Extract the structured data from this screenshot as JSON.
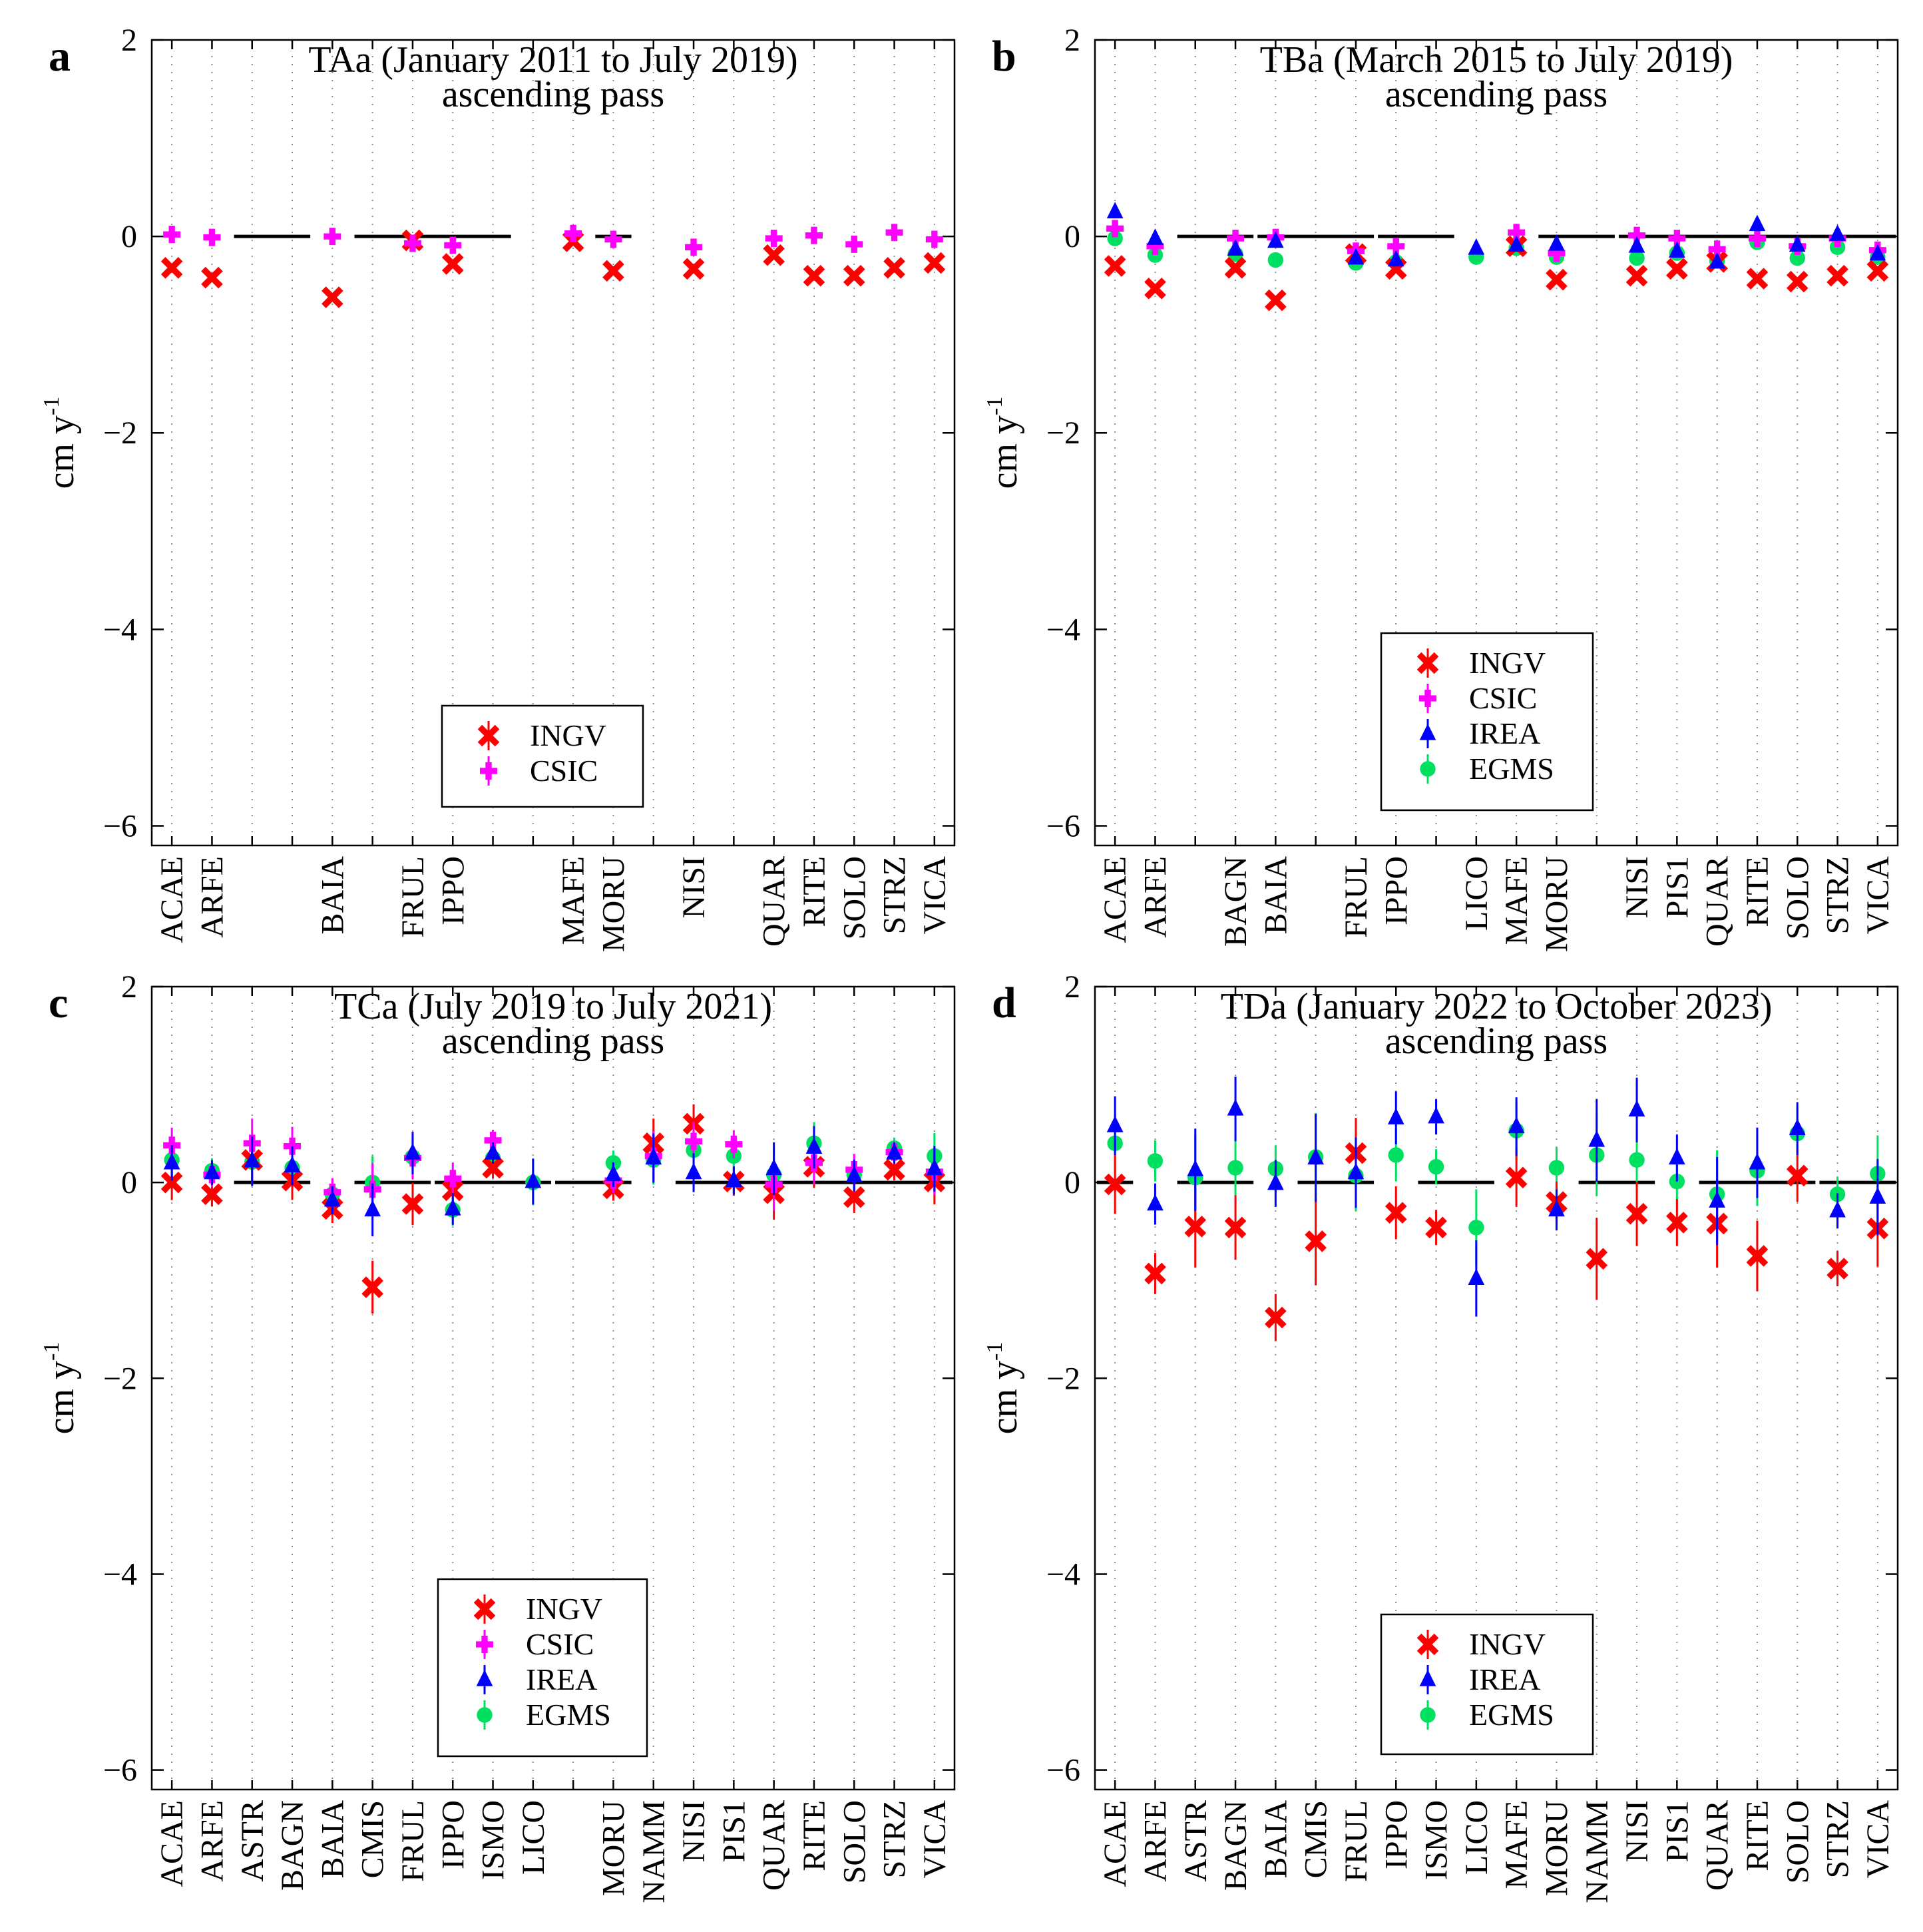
{
  "chart_data": [
    {
      "type": "scatter",
      "panel": "a",
      "title": "TAa (January 2011 to July 2019)",
      "subtitle": "ascending pass",
      "ylabel": "cm y",
      "ylabel_sup": "-1",
      "ylim": [
        -6.2,
        2
      ],
      "yticks": [
        2,
        0,
        -2,
        -4,
        -6
      ],
      "ytick_labels": [
        "2",
        "0",
        "−2",
        "−4",
        "−6"
      ],
      "legend_position": "bottom-center",
      "stations": [
        "ACAE",
        "ARFE",
        "",
        "",
        "BAIA",
        "",
        "FRUL",
        "IPPO",
        "",
        "",
        "MAFE",
        "MORU",
        "",
        "NISI",
        "",
        "QUAR",
        "RITE",
        "SOLO",
        "STRZ",
        "VICA"
      ],
      "series": [
        {
          "name": "INGV",
          "values": [
            -0.32,
            -0.42,
            null,
            null,
            -0.62,
            null,
            -0.04,
            -0.28,
            null,
            null,
            -0.05,
            -0.35,
            null,
            -0.33,
            null,
            -0.19,
            -0.4,
            -0.4,
            -0.32,
            -0.27
          ]
        },
        {
          "name": "CSIC",
          "values": [
            0.02,
            -0.01,
            null,
            null,
            0.0,
            null,
            -0.07,
            -0.09,
            null,
            null,
            0.03,
            -0.03,
            null,
            -0.11,
            null,
            -0.02,
            0.01,
            -0.08,
            0.04,
            -0.03
          ]
        }
      ]
    },
    {
      "type": "scatter",
      "panel": "b",
      "title": "TBa (March 2015 to July 2019)",
      "subtitle": "ascending pass",
      "ylabel": "cm y",
      "ylabel_sup": "-1",
      "ylim": [
        -6.2,
        2
      ],
      "yticks": [
        2,
        0,
        -2,
        -4,
        -6
      ],
      "ytick_labels": [
        "2",
        "0",
        "−2",
        "−4",
        "−6"
      ],
      "legend_position": "bottom-center",
      "stations": [
        "ACAE",
        "ARFE",
        "",
        "BAGN",
        "BAIA",
        "",
        "FRUL",
        "IPPO",
        "",
        "LICO",
        "MAFE",
        "MORU",
        "",
        "NISI",
        "PIS1",
        "QUAR",
        "RITE",
        "SOLO",
        "STRZ",
        "VICA"
      ],
      "series": [
        {
          "name": "INGV",
          "values": [
            -0.3,
            -0.53,
            null,
            -0.32,
            -0.65,
            null,
            -0.18,
            -0.33,
            null,
            null,
            -0.1,
            -0.44,
            null,
            -0.4,
            -0.33,
            -0.26,
            -0.43,
            -0.46,
            -0.4,
            -0.35
          ]
        },
        {
          "name": "CSIC",
          "values": [
            0.08,
            -0.1,
            null,
            -0.02,
            -0.01,
            null,
            -0.15,
            -0.1,
            null,
            null,
            0.04,
            -0.17,
            null,
            0.01,
            -0.02,
            -0.13,
            -0.02,
            -0.1,
            -0.02,
            -0.14
          ]
        },
        {
          "name": "IREA",
          "values": [
            0.25,
            -0.02,
            null,
            -0.13,
            -0.05,
            null,
            -0.22,
            -0.24,
            null,
            -0.12,
            -0.09,
            -0.08,
            null,
            -0.1,
            -0.15,
            -0.26,
            0.12,
            -0.09,
            0.02,
            -0.18
          ]
        },
        {
          "name": "EGMS",
          "values": [
            -0.02,
            -0.19,
            null,
            -0.18,
            -0.24,
            null,
            -0.27,
            -0.26,
            null,
            -0.21,
            -0.12,
            -0.21,
            null,
            -0.22,
            -0.17,
            -0.25,
            -0.06,
            -0.22,
            -0.11,
            -0.21
          ]
        }
      ]
    },
    {
      "type": "scatter",
      "panel": "c",
      "title": "TCa (July 2019 to July 2021)",
      "subtitle": "ascending pass",
      "ylabel": "cm y",
      "ylabel_sup": "-1",
      "ylim": [
        -6.2,
        2
      ],
      "yticks": [
        2,
        0,
        -2,
        -4,
        -6
      ],
      "ytick_labels": [
        "2",
        "0",
        "−2",
        "−4",
        "−6"
      ],
      "legend_position": "bottom-center",
      "stations": [
        "ACAE",
        "ARFE",
        "ASTR",
        "BAGN",
        "BAIA",
        "CMIS",
        "FRUL",
        "IPPO",
        "ISMO",
        "LICO",
        "",
        "MORU",
        "NAMM",
        "NISI",
        "PIS1",
        "QUAR",
        "RITE",
        "SOLO",
        "STRZ",
        "VICA"
      ],
      "series": [
        {
          "name": "INGV",
          "values": [
            0.0,
            -0.12,
            0.23,
            0.02,
            -0.27,
            -1.07,
            -0.22,
            -0.08,
            0.15,
            null,
            null,
            -0.06,
            0.4,
            0.6,
            0.01,
            -0.11,
            0.16,
            -0.15,
            0.13,
            0.01
          ]
        },
        {
          "name": "CSIC",
          "values": [
            0.38,
            0.08,
            0.4,
            0.37,
            -0.1,
            -0.07,
            0.25,
            0.04,
            0.43,
            null,
            null,
            0.02,
            0.27,
            0.42,
            0.39,
            -0.02,
            0.2,
            0.13,
            0.31,
            0.11
          ]
        },
        {
          "name": "IREA",
          "values": [
            0.2,
            0.1,
            0.22,
            0.17,
            -0.18,
            -0.28,
            0.3,
            -0.27,
            0.3,
            0.01,
            null,
            0.08,
            0.25,
            0.1,
            0.02,
            0.14,
            0.36,
            0.07,
            0.3,
            0.14
          ]
        },
        {
          "name": "EGMS",
          "values": [
            0.23,
            0.12,
            0.21,
            0.15,
            -0.12,
            0.0,
            0.26,
            -0.28,
            0.25,
            0.0,
            null,
            0.2,
            0.23,
            0.33,
            0.27,
            0.08,
            0.4,
            0.08,
            0.35,
            0.27
          ]
        }
      ]
    },
    {
      "type": "scatter",
      "panel": "d",
      "title": "TDa (January 2022 to October 2023)",
      "subtitle": "ascending pass",
      "ylabel": "cm y",
      "ylabel_sup": "-1",
      "ylim": [
        -6.2,
        2
      ],
      "yticks": [
        2,
        0,
        -2,
        -4,
        -6
      ],
      "ytick_labels": [
        "2",
        "0",
        "−2",
        "−4",
        "−6"
      ],
      "legend_position": "bottom-center",
      "stations": [
        "ACAE",
        "ARFE",
        "ASTR",
        "BAGN",
        "BAIA",
        "CMIS",
        "FRUL",
        "IPPO",
        "ISMO",
        "LICO",
        "MAFE",
        "MORU",
        "NAMM",
        "NISI",
        "PIS1",
        "QUAR",
        "RITE",
        "SOLO",
        "STRZ",
        "VICA"
      ],
      "series": [
        {
          "name": "INGV",
          "values": [
            -0.02,
            -0.93,
            -0.45,
            -0.46,
            -1.38,
            -0.6,
            0.3,
            -0.31,
            -0.46,
            null,
            0.05,
            -0.2,
            -0.78,
            -0.32,
            -0.41,
            -0.42,
            -0.75,
            0.07,
            -0.88,
            -0.47
          ]
        },
        {
          "name": "IREA",
          "values": [
            0.58,
            -0.22,
            0.13,
            0.75,
            -0.01,
            0.25,
            0.1,
            0.66,
            0.67,
            -0.98,
            0.57,
            -0.28,
            0.43,
            0.74,
            0.25,
            -0.19,
            0.2,
            0.55,
            -0.29,
            -0.15
          ]
        },
        {
          "name": "EGMS",
          "values": [
            0.4,
            0.22,
            0.05,
            0.15,
            0.14,
            0.26,
            0.07,
            0.28,
            0.16,
            -0.46,
            0.53,
            0.15,
            0.28,
            0.23,
            0.01,
            -0.12,
            0.12,
            0.5,
            -0.12,
            0.09
          ]
        }
      ]
    }
  ],
  "legend_styles": {
    "INGV": {
      "color": "#ff0000",
      "marker": "x"
    },
    "CSIC": {
      "color": "#ff00ff",
      "marker": "plus"
    },
    "IREA": {
      "color": "#0000ff",
      "marker": "triangle"
    },
    "EGMS": {
      "color": "#00e060",
      "marker": "circle"
    }
  }
}
